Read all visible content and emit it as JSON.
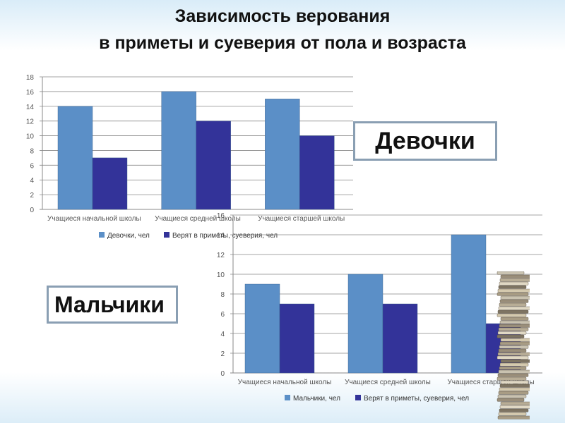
{
  "title": {
    "line1": "Зависимость верования",
    "line2": "в приметы и суеверия от пола и возраста"
  },
  "labels": {
    "girls": "Девочки",
    "boys": "Мальчики"
  },
  "colors": {
    "light_bar": "#5b8fc7",
    "dark_bar": "#333399",
    "grid": "#888888"
  },
  "chart_data": [
    {
      "type": "bar",
      "categories": [
        "Учащиеся начальной школы",
        "Учащиеся средней школы",
        "Учащиеся старшей школы"
      ],
      "series": [
        {
          "name": "Девочки, чел",
          "values": [
            14,
            16,
            15
          ]
        },
        {
          "name": "Верят в приметы, суеверия, чел",
          "values": [
            7,
            12,
            10
          ]
        }
      ],
      "ylim": [
        0,
        18
      ],
      "yticks": [
        0,
        2,
        4,
        6,
        8,
        10,
        12,
        14,
        16,
        18
      ],
      "grid": true,
      "legend": "bottom"
    },
    {
      "type": "bar",
      "categories": [
        "Учащиеся начальной школы",
        "Учащиеся средней школы",
        "Учащиеся старшей школы"
      ],
      "series": [
        {
          "name": "Мальчики, чел",
          "values": [
            9,
            10,
            14
          ]
        },
        {
          "name": "Верят в приметы, суеверия, чел",
          "values": [
            7,
            7,
            5
          ]
        }
      ],
      "ylim": [
        0,
        16
      ],
      "yticks": [
        0,
        2,
        4,
        6,
        8,
        10,
        12,
        14,
        16
      ],
      "grid": true,
      "legend": "bottom"
    }
  ]
}
